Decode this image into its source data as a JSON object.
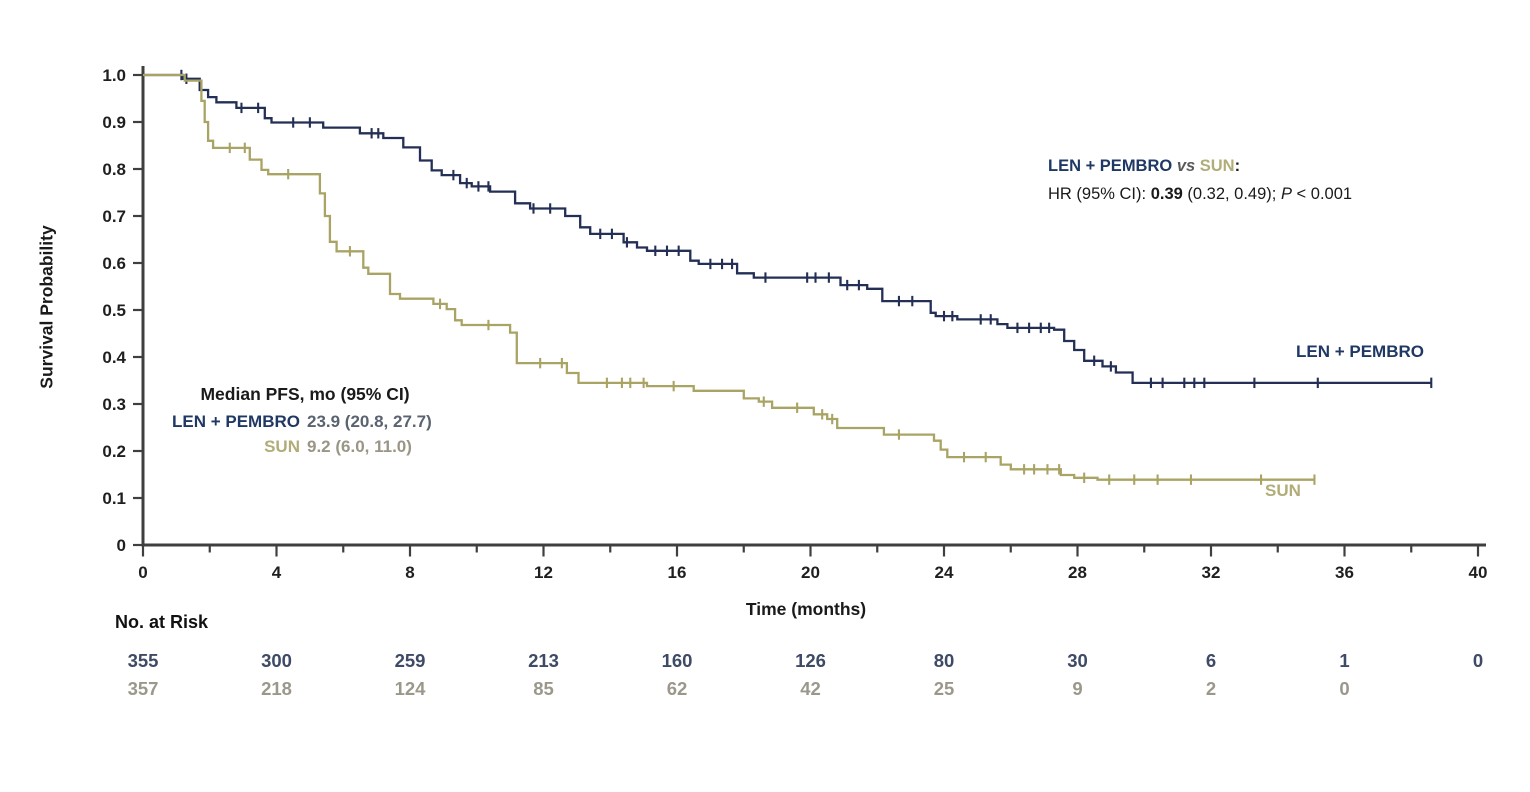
{
  "colors": {
    "arm_a_text": "#1F3864",
    "arm_a_curve": "#232F55",
    "arm_b_text": "#B2AC78",
    "arm_b_curve": "#A9A464",
    "arm_a_value_text": "#5A6370",
    "arm_b_value_text": "#9A9685",
    "risk_row_a": "#3E4A66",
    "risk_row_b": "#9B988B",
    "axis": "#3F3F3F",
    "tick_label": "#1F1F1F",
    "dark_text": "#1A1A1A",
    "vs_text": "#595959"
  },
  "annotation": {
    "arm_a": "LEN + PEMBRO",
    "vs": " vs ",
    "arm_b": "SUN",
    "colon": ":",
    "hr_prefix": "HR (95% CI): ",
    "hr_value": "0.39",
    "hr_ci": " (0.32, 0.49); ",
    "p_label": "P",
    "p_value": " < 0.001"
  },
  "median_box": {
    "title": "Median PFS, mo (95% CI)",
    "rows": [
      {
        "label": "LEN + PEMBRO",
        "value": "23.9 (20.8, 27.7)"
      },
      {
        "label": "SUN",
        "value": "9.2 (6.0, 11.0)"
      }
    ]
  },
  "risk_table": {
    "header": "No. at Risk",
    "time_points": [
      0,
      4,
      8,
      12,
      16,
      20,
      24,
      28,
      32,
      36,
      40
    ],
    "rows": [
      {
        "name": "LEN + PEMBRO",
        "color": "#3E4A66",
        "counts": [
          "355",
          "300",
          "259",
          "213",
          "160",
          "126",
          "80",
          "30",
          "6",
          "1",
          "0"
        ]
      },
      {
        "name": "SUN",
        "color": "#9B988B",
        "counts": [
          "357",
          "218",
          "124",
          "85",
          "62",
          "42",
          "25",
          "9",
          "2",
          "0",
          ""
        ]
      }
    ]
  },
  "chart_data": {
    "type": "line",
    "subtype": "kaplan-meier-step",
    "title": "",
    "xlabel": "Time (months)",
    "ylabel": "Survival Probability",
    "xlim": [
      0,
      40
    ],
    "ylim": [
      0,
      1
    ],
    "grid": false,
    "legend_position": "inline-end-of-curve",
    "x_ticks_major": [
      0,
      4,
      8,
      12,
      16,
      20,
      24,
      28,
      32,
      36,
      40
    ],
    "x_ticks_minor": [
      2,
      6,
      10,
      14,
      18,
      22,
      26,
      30,
      34,
      38
    ],
    "y_ticks": [
      [
        1.0,
        "1.0"
      ],
      [
        0.9,
        "0.9"
      ],
      [
        0.8,
        "0.8"
      ],
      [
        0.7,
        "0.7"
      ],
      [
        0.6,
        "0.6"
      ],
      [
        0.5,
        "0.5"
      ],
      [
        0.4,
        "0.4"
      ],
      [
        0.3,
        "0.3"
      ],
      [
        0.2,
        "0.2"
      ],
      [
        0.1,
        "0.1"
      ],
      [
        0,
        "0"
      ]
    ],
    "series": [
      {
        "name": "LEN + PEMBRO",
        "color": "#232F55",
        "points": [
          [
            0,
            1.0
          ],
          [
            1.2,
            0.992
          ],
          [
            1.7,
            0.968
          ],
          [
            1.95,
            0.953
          ],
          [
            2.2,
            0.942
          ],
          [
            2.8,
            0.93
          ],
          [
            3.65,
            0.908
          ],
          [
            3.85,
            0.899
          ],
          [
            5.4,
            0.888
          ],
          [
            6.5,
            0.876
          ],
          [
            7.2,
            0.866
          ],
          [
            7.8,
            0.846
          ],
          [
            8.3,
            0.818
          ],
          [
            8.65,
            0.797
          ],
          [
            8.95,
            0.787
          ],
          [
            9.5,
            0.77
          ],
          [
            9.85,
            0.763
          ],
          [
            10.4,
            0.752
          ],
          [
            11.15,
            0.727
          ],
          [
            11.6,
            0.716
          ],
          [
            12.65,
            0.7
          ],
          [
            13.1,
            0.676
          ],
          [
            13.4,
            0.662
          ],
          [
            14.4,
            0.644
          ],
          [
            14.8,
            0.633
          ],
          [
            15.1,
            0.626
          ],
          [
            16.4,
            0.605
          ],
          [
            16.65,
            0.598
          ],
          [
            17.8,
            0.578
          ],
          [
            18.3,
            0.569
          ],
          [
            20.9,
            0.553
          ],
          [
            21.7,
            0.545
          ],
          [
            22.15,
            0.519
          ],
          [
            23.6,
            0.494
          ],
          [
            23.75,
            0.487
          ],
          [
            24.4,
            0.48
          ],
          [
            25.6,
            0.47
          ],
          [
            25.9,
            0.462
          ],
          [
            27.3,
            0.458
          ],
          [
            27.6,
            0.434
          ],
          [
            27.9,
            0.415
          ],
          [
            28.2,
            0.392
          ],
          [
            28.75,
            0.38
          ],
          [
            29.15,
            0.367
          ],
          [
            29.65,
            0.345
          ],
          [
            38.6,
            0.345
          ]
        ],
        "censor_marks": [
          1.15,
          1.3,
          2.95,
          3.45,
          4.5,
          5.0,
          6.85,
          7.05,
          9.3,
          9.7,
          10.05,
          10.35,
          11.7,
          12.2,
          13.7,
          14.05,
          14.5,
          15.35,
          15.7,
          16.05,
          17.0,
          17.35,
          17.65,
          18.65,
          19.9,
          20.15,
          20.55,
          21.1,
          21.45,
          22.65,
          23.05,
          24.0,
          24.25,
          25.1,
          25.4,
          26.2,
          26.55,
          26.9,
          27.15,
          28.5,
          29.0,
          30.2,
          30.55,
          31.2,
          31.5,
          31.8,
          33.3,
          35.2,
          38.6
        ]
      },
      {
        "name": "SUN",
        "color": "#A9A464",
        "points": [
          [
            0,
            1.0
          ],
          [
            1.25,
            0.988
          ],
          [
            1.75,
            0.945
          ],
          [
            1.85,
            0.9
          ],
          [
            1.95,
            0.86
          ],
          [
            2.1,
            0.845
          ],
          [
            3.2,
            0.82
          ],
          [
            3.55,
            0.798
          ],
          [
            3.75,
            0.789
          ],
          [
            5.3,
            0.748
          ],
          [
            5.45,
            0.7
          ],
          [
            5.6,
            0.645
          ],
          [
            5.8,
            0.625
          ],
          [
            6.6,
            0.59
          ],
          [
            6.75,
            0.577
          ],
          [
            7.4,
            0.534
          ],
          [
            7.7,
            0.524
          ],
          [
            8.7,
            0.513
          ],
          [
            9.1,
            0.502
          ],
          [
            9.35,
            0.478
          ],
          [
            9.55,
            0.468
          ],
          [
            11.0,
            0.452
          ],
          [
            11.2,
            0.387
          ],
          [
            12.7,
            0.366
          ],
          [
            13.05,
            0.345
          ],
          [
            15.1,
            0.338
          ],
          [
            16.5,
            0.328
          ],
          [
            18.0,
            0.312
          ],
          [
            18.45,
            0.305
          ],
          [
            18.85,
            0.292
          ],
          [
            20.1,
            0.278
          ],
          [
            20.5,
            0.268
          ],
          [
            20.8,
            0.249
          ],
          [
            22.2,
            0.235
          ],
          [
            23.7,
            0.222
          ],
          [
            23.9,
            0.203
          ],
          [
            24.1,
            0.187
          ],
          [
            25.7,
            0.171
          ],
          [
            26.0,
            0.161
          ],
          [
            27.5,
            0.149
          ],
          [
            27.9,
            0.143
          ],
          [
            28.6,
            0.139
          ],
          [
            35.1,
            0.139
          ]
        ],
        "censor_marks": [
          2.6,
          3.05,
          4.35,
          6.2,
          8.9,
          10.35,
          11.9,
          12.55,
          13.9,
          14.35,
          14.6,
          15.0,
          15.9,
          18.6,
          19.6,
          20.35,
          20.65,
          22.65,
          24.6,
          25.25,
          26.4,
          26.7,
          27.1,
          27.45,
          28.2,
          28.95,
          29.7,
          30.4,
          31.4,
          33.5,
          35.1
        ]
      }
    ]
  }
}
